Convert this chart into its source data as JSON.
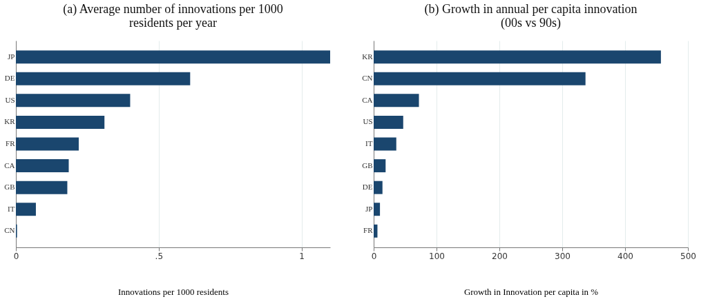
{
  "chart_data": [
    {
      "type": "bar",
      "orientation": "horizontal",
      "title": [
        "(a) Average number of innovations per 1000",
        "residents per year"
      ],
      "xlabel": "Innovations per 1000 residents",
      "categories": [
        "JP",
        "DE",
        "US",
        "KR",
        "FR",
        "CA",
        "GB",
        "IT",
        "CN"
      ],
      "values": [
        1.1,
        0.61,
        0.4,
        0.31,
        0.22,
        0.185,
        0.18,
        0.07,
        0.004
      ],
      "color": "#1a466e",
      "xlim": [
        0,
        1.1
      ],
      "xticks": [
        0,
        {
          "value": 0.5,
          "label": ".5"
        },
        1
      ],
      "grid": "x"
    },
    {
      "type": "bar",
      "orientation": "horizontal",
      "title": [
        "(b) Growth in annual per capita innovation",
        "(00s vs 90s)"
      ],
      "xlabel": "Growth in Innovation per capita in %",
      "categories": [
        "KR",
        "CN",
        "CA",
        "US",
        "IT",
        "GB",
        "DE",
        "JP",
        "FR"
      ],
      "values": [
        457,
        337,
        72,
        47,
        36,
        19,
        14,
        10,
        6
      ],
      "color": "#1a466e",
      "xlim": [
        0,
        500
      ],
      "xticks": [
        0,
        100,
        200,
        300,
        400,
        500
      ],
      "grid": "x"
    }
  ]
}
